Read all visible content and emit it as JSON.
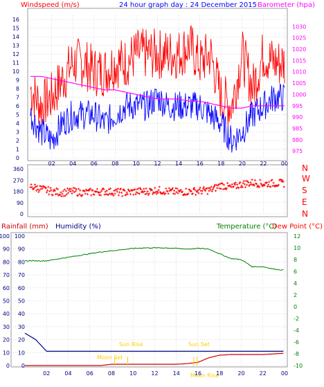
{
  "colors": {
    "wind": "#ff0000",
    "gust": "#ff0000",
    "wind_avg": "#0000ff",
    "barometer": "#ff00ff",
    "direction": "#ff0000",
    "rain": "#cc0000",
    "humidity": "#000080",
    "temperature": "#008000",
    "dewpoint": "#ff0000",
    "sun_rise": "#ffcc00",
    "sun_set": "#ffcc00",
    "moon_set": "#ffcc00",
    "axis_text": "#000080",
    "title": "#0000ff",
    "grid": "#c0c0c0"
  },
  "top_panel": {
    "left_label": "Windspeed (m/s)",
    "title": "24 hour graph day : 24 December 2015",
    "right_label": "Barometer (hpa)"
  },
  "dir_panel": {
    "right_labels": [
      "N",
      "W",
      "S",
      "E",
      "N"
    ]
  },
  "bottom_panel": {
    "rain_label": "Rainfall (mm)",
    "humidity_label": "Humidity (%)",
    "temp_label": "Temperature (°C)",
    "dew_label": "Dew Point (°C)"
  },
  "annotations": {
    "sun_rise": "Sun Rise",
    "sun_set": "Sun Set",
    "moon_set": "Moon Set",
    "moon_rise": "Moon Rise"
  },
  "chart_data": [
    {
      "type": "line",
      "title": "24 hour graph day : 24 December 2015",
      "ylabel": "Windspeed (m/s)",
      "y2label": "Barometer (hpa)",
      "x_ticks": [
        "02",
        "04",
        "06",
        "08",
        "10",
        "12",
        "14",
        "16",
        "18",
        "20",
        "22",
        "00"
      ],
      "ylim": [
        0,
        16.5
      ],
      "y2lim": [
        972,
        1035
      ],
      "y_ticks": [
        0,
        1,
        2,
        3,
        4,
        5,
        6,
        7,
        8,
        9,
        10,
        11,
        12,
        13,
        14,
        15,
        16
      ],
      "y2_ticks": [
        975,
        980,
        985,
        990,
        995,
        1000,
        1005,
        1010,
        1015,
        1020,
        1025,
        1030
      ],
      "grid": true,
      "series": [
        {
          "name": "gust",
          "x": [
            0,
            1,
            2,
            3,
            4,
            5,
            6,
            7,
            8,
            9,
            10,
            11,
            12,
            13,
            14,
            15,
            16,
            17,
            18,
            19,
            20,
            21,
            22,
            23,
            24
          ],
          "values": [
            8,
            6,
            7,
            9,
            11,
            11,
            10,
            10,
            11,
            11,
            12,
            12,
            12,
            12,
            12,
            13,
            11,
            12,
            7,
            6,
            12,
            8,
            12,
            11,
            11
          ]
        },
        {
          "name": "average",
          "x": [
            0,
            1,
            2,
            3,
            4,
            5,
            6,
            7,
            8,
            9,
            10,
            11,
            12,
            13,
            14,
            15,
            16,
            17,
            18,
            19,
            20,
            21,
            22,
            23,
            24
          ],
          "values": [
            5,
            3,
            2,
            4,
            5,
            5,
            5,
            4,
            5,
            6,
            6,
            6,
            7,
            6,
            6,
            6,
            6,
            5,
            4,
            2,
            3,
            5,
            6,
            7,
            7
          ]
        },
        {
          "name": "barometer",
          "x": [
            0,
            1,
            2,
            3,
            4,
            5,
            6,
            7,
            8,
            9,
            10,
            11,
            12,
            13,
            14,
            15,
            16,
            17,
            18,
            19,
            20,
            21,
            22,
            23,
            24
          ],
          "values": [
            1008,
            1008,
            1007,
            1006,
            1005,
            1004,
            1003,
            1002,
            1002,
            1001,
            1000,
            999,
            998,
            998,
            998,
            997,
            997,
            996,
            995,
            994,
            994,
            995,
            995,
            995,
            995
          ]
        }
      ]
    },
    {
      "type": "scatter",
      "ylabel": "Wind direction",
      "y_ticks": [
        0,
        90,
        180,
        270,
        360
      ],
      "ylim": [
        0,
        360
      ],
      "series": [
        {
          "name": "direction",
          "x": [
            0,
            1,
            2,
            3,
            4,
            5,
            6,
            7,
            8,
            9,
            10,
            11,
            12,
            13,
            14,
            15,
            16,
            17,
            18,
            19,
            20,
            21,
            22,
            23,
            24
          ],
          "values": [
            220,
            200,
            180,
            170,
            180,
            170,
            175,
            180,
            175,
            170,
            180,
            180,
            190,
            180,
            175,
            180,
            185,
            190,
            230,
            210,
            240,
            250,
            240,
            245,
            245
          ]
        }
      ]
    },
    {
      "type": "line",
      "ylabel": "Rainfall (mm)",
      "y2label": "Temperature (°C)",
      "ylim": [
        0,
        100
      ],
      "y_ticks": [
        0,
        10,
        20,
        30,
        40,
        50,
        60,
        70,
        80,
        90,
        100
      ],
      "y2lim": [
        -10,
        12
      ],
      "y2_ticks": [
        -10,
        -8,
        -6,
        -4,
        -2,
        0,
        2,
        4,
        6,
        8,
        10,
        12
      ],
      "series": [
        {
          "name": "humidity",
          "x": [
            0,
            1,
            2,
            3,
            4,
            5,
            6,
            7,
            8,
            9,
            10,
            11,
            12,
            13,
            14,
            15,
            16,
            17,
            18,
            19,
            20,
            21,
            22,
            23,
            24
          ],
          "values": [
            25,
            20,
            11,
            11,
            11,
            11,
            11,
            11,
            11,
            11,
            11,
            11,
            11,
            11,
            11,
            11,
            11,
            11,
            11,
            11,
            11,
            11,
            11,
            11,
            11
          ]
        },
        {
          "name": "temperature",
          "x": [
            0,
            1,
            2,
            3,
            4,
            5,
            6,
            7,
            8,
            9,
            10,
            11,
            12,
            13,
            14,
            15,
            16,
            17,
            18,
            19,
            20,
            21,
            22,
            23,
            24
          ],
          "values": [
            7.8,
            7.8,
            7.8,
            8.1,
            8.4,
            8.7,
            9.0,
            9.3,
            9.5,
            9.7,
            9.9,
            10.0,
            10.0,
            10.0,
            9.9,
            9.8,
            9.9,
            9.8,
            9.0,
            8.2,
            8.0,
            6.8,
            6.8,
            6.4,
            6.2
          ]
        },
        {
          "name": "rain",
          "x": [
            0,
            1,
            2,
            3,
            4,
            5,
            6,
            7,
            8,
            9,
            10,
            11,
            12,
            13,
            14,
            15,
            16,
            17,
            18,
            19,
            20,
            21,
            22,
            23,
            24
          ],
          "values": [
            0,
            0,
            0,
            0,
            0,
            0,
            0,
            0,
            1.0,
            1.0,
            1.0,
            1.0,
            1.0,
            1.0,
            1.0,
            1.5,
            2.5,
            6,
            8,
            8.5,
            8.5,
            8.5,
            8.5,
            9,
            9.5
          ]
        }
      ]
    }
  ]
}
